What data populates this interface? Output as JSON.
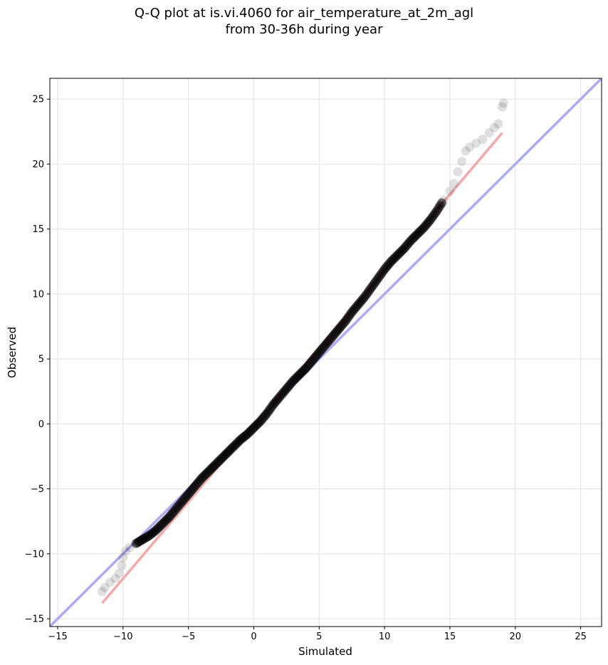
{
  "chart_data": {
    "type": "scatter",
    "title_line1": "Q-Q plot at is.vi.4060 for air_temperature_at_2m_agl",
    "title_line2": "from 30-36h during year",
    "xlabel": "Simulated",
    "ylabel": "Observed",
    "xlim": [
      -15.6,
      26.6
    ],
    "ylim": [
      -15.6,
      26.6
    ],
    "xticks": [
      -15,
      -10,
      -5,
      0,
      5,
      10,
      15,
      20,
      25
    ],
    "yticks": [
      -15,
      -10,
      -5,
      0,
      5,
      10,
      15,
      20,
      25
    ],
    "tick_labels": [
      "−15",
      "−10",
      "−5",
      "0",
      "5",
      "10",
      "15",
      "20",
      "25"
    ],
    "grid": true,
    "identity_line": {
      "color": "#aaaaf5",
      "from": [
        -15.6,
        -15.6
      ],
      "to": [
        26.6,
        26.6
      ]
    },
    "fit_line": {
      "color": "#f5a8a8",
      "from": [
        -11.6,
        -13.8
      ],
      "to": [
        19.0,
        22.4
      ]
    },
    "quantile_points": [
      [
        -11.6,
        -12.9
      ],
      [
        -11.4,
        -12.6
      ],
      [
        -11.0,
        -12.2
      ],
      [
        -10.6,
        -11.9
      ],
      [
        -10.3,
        -11.5
      ],
      [
        -10.1,
        -10.9
      ],
      [
        -10.0,
        -10.3
      ],
      [
        -9.8,
        -9.8
      ],
      [
        -9.5,
        -9.5
      ],
      [
        -9.0,
        -9.2
      ],
      [
        -8.5,
        -8.9
      ],
      [
        -8.0,
        -8.6
      ],
      [
        -7.5,
        -8.2
      ],
      [
        -7.0,
        -7.7
      ],
      [
        -6.5,
        -7.2
      ],
      [
        -6.0,
        -6.6
      ],
      [
        -5.5,
        -6.0
      ],
      [
        -5.0,
        -5.4
      ],
      [
        -4.5,
        -4.8
      ],
      [
        -4.0,
        -4.2
      ],
      [
        -3.5,
        -3.7
      ],
      [
        -3.0,
        -3.2
      ],
      [
        -2.5,
        -2.7
      ],
      [
        -2.0,
        -2.2
      ],
      [
        -1.5,
        -1.7
      ],
      [
        -1.0,
        -1.2
      ],
      [
        -0.5,
        -0.8
      ],
      [
        0.0,
        -0.3
      ],
      [
        0.5,
        0.2
      ],
      [
        1.0,
        0.8
      ],
      [
        1.5,
        1.5
      ],
      [
        2.0,
        2.1
      ],
      [
        2.5,
        2.7
      ],
      [
        3.0,
        3.3
      ],
      [
        3.5,
        3.8
      ],
      [
        4.0,
        4.3
      ],
      [
        4.5,
        4.9
      ],
      [
        5.0,
        5.5
      ],
      [
        5.5,
        6.1
      ],
      [
        6.0,
        6.7
      ],
      [
        6.5,
        7.3
      ],
      [
        7.0,
        7.9
      ],
      [
        7.5,
        8.6
      ],
      [
        8.0,
        9.2
      ],
      [
        8.5,
        9.8
      ],
      [
        9.0,
        10.5
      ],
      [
        9.5,
        11.2
      ],
      [
        10.0,
        11.9
      ],
      [
        10.5,
        12.5
      ],
      [
        11.0,
        13.0
      ],
      [
        11.5,
        13.5
      ],
      [
        12.0,
        14.1
      ],
      [
        12.5,
        14.6
      ],
      [
        13.0,
        15.1
      ],
      [
        13.5,
        15.7
      ],
      [
        14.0,
        16.4
      ],
      [
        14.5,
        17.2
      ],
      [
        15.0,
        17.9
      ],
      [
        15.3,
        18.5
      ],
      [
        15.6,
        19.4
      ],
      [
        15.9,
        20.2
      ],
      [
        16.2,
        21.0
      ],
      [
        16.5,
        21.3
      ],
      [
        17.0,
        21.6
      ],
      [
        17.5,
        21.9
      ],
      [
        18.0,
        22.4
      ],
      [
        18.4,
        22.8
      ],
      [
        18.7,
        23.1
      ],
      [
        19.0,
        24.4
      ],
      [
        19.1,
        24.7
      ]
    ]
  }
}
